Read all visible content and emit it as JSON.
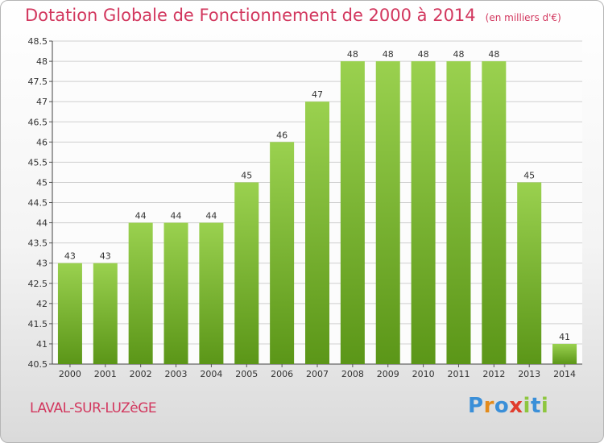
{
  "header": {
    "title": "Dotation Globale de Fonctionnement de 2000 à 2014",
    "unit": "(en milliers d'€)"
  },
  "footer": {
    "commune": "LAVAL-SUR-LUZèGE",
    "logo_letters": [
      {
        "ch": "P",
        "color": "#3a8fd8"
      },
      {
        "ch": "r",
        "color": "#e38b1b"
      },
      {
        "ch": "o",
        "color": "#3a8fd8"
      },
      {
        "ch": "x",
        "color": "#e03c2c"
      },
      {
        "ch": "i",
        "color": "#8ec63f"
      },
      {
        "ch": "t",
        "color": "#3a8fd8"
      },
      {
        "ch": "i",
        "color": "#8ec63f"
      }
    ]
  },
  "colors": {
    "bar_top": "#9ad14f",
    "bar_bottom": "#5b9618",
    "title": "#d2375e",
    "grid": "#cfcfcf"
  },
  "chart_data": {
    "type": "bar",
    "categories": [
      "2000",
      "2001",
      "2002",
      "2003",
      "2004",
      "2005",
      "2006",
      "2007",
      "2008",
      "2009",
      "2010",
      "2011",
      "2012",
      "2013",
      "2014"
    ],
    "values": [
      43,
      43,
      44,
      44,
      44,
      45,
      46,
      47,
      48,
      48,
      48,
      48,
      48,
      45,
      41
    ],
    "data_labels": [
      "43",
      "43",
      "44",
      "44",
      "44",
      "45",
      "46",
      "47",
      "48",
      "48",
      "48",
      "48",
      "48",
      "45",
      "41"
    ],
    "ylim": [
      40.5,
      48.5
    ],
    "yticks": [
      "40.5",
      "41",
      "41.5",
      "42",
      "42.5",
      "43",
      "43.5",
      "44",
      "44.5",
      "45",
      "45.5",
      "46",
      "46.5",
      "47",
      "47.5",
      "48",
      "48.5"
    ],
    "grid": true,
    "xlabel": "",
    "ylabel": ""
  }
}
